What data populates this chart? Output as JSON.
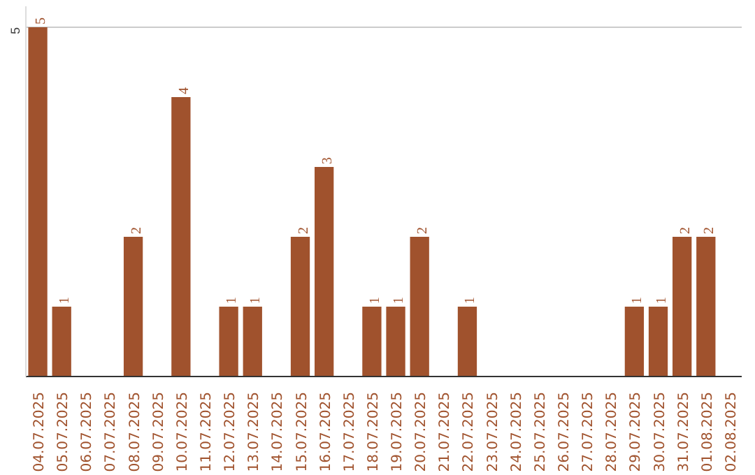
{
  "chart_data": {
    "type": "bar",
    "categories": [
      "04.07.2025",
      "05.07.2025",
      "06.07.2025",
      "07.07.2025",
      "08.07.2025",
      "09.07.2025",
      "10.07.2025",
      "11.07.2025",
      "12.07.2025",
      "13.07.2025",
      "14.07.2025",
      "15.07.2025",
      "16.07.2025",
      "17.07.2025",
      "18.07.2025",
      "19.07.2025",
      "20.07.2025",
      "21.07.2025",
      "22.07.2025",
      "23.07.2025",
      "24.07.2025",
      "25.07.2025",
      "26.07.2025",
      "27.07.2025",
      "28.07.2025",
      "29.07.2025",
      "30.07.2025",
      "31.07.2025",
      "01.08.2025",
      "02.08.2025"
    ],
    "values": [
      5,
      1,
      0,
      0,
      2,
      0,
      4,
      0,
      1,
      1,
      0,
      2,
      3,
      0,
      1,
      1,
      2,
      0,
      1,
      0,
      0,
      0,
      0,
      0,
      0,
      1,
      1,
      2,
      2,
      0
    ],
    "value_labels": [
      "5",
      "1",
      null,
      null,
      "2",
      null,
      "4",
      null,
      "1",
      "1",
      null,
      "2",
      "3",
      null,
      "1",
      "1",
      "2",
      null,
      "1",
      null,
      null,
      null,
      null,
      null,
      null,
      "1",
      "1",
      "2",
      "2",
      null
    ],
    "color": "#a0522d",
    "ylim": [
      0,
      5.3
    ],
    "yticks": [
      5
    ],
    "grid": "y"
  }
}
